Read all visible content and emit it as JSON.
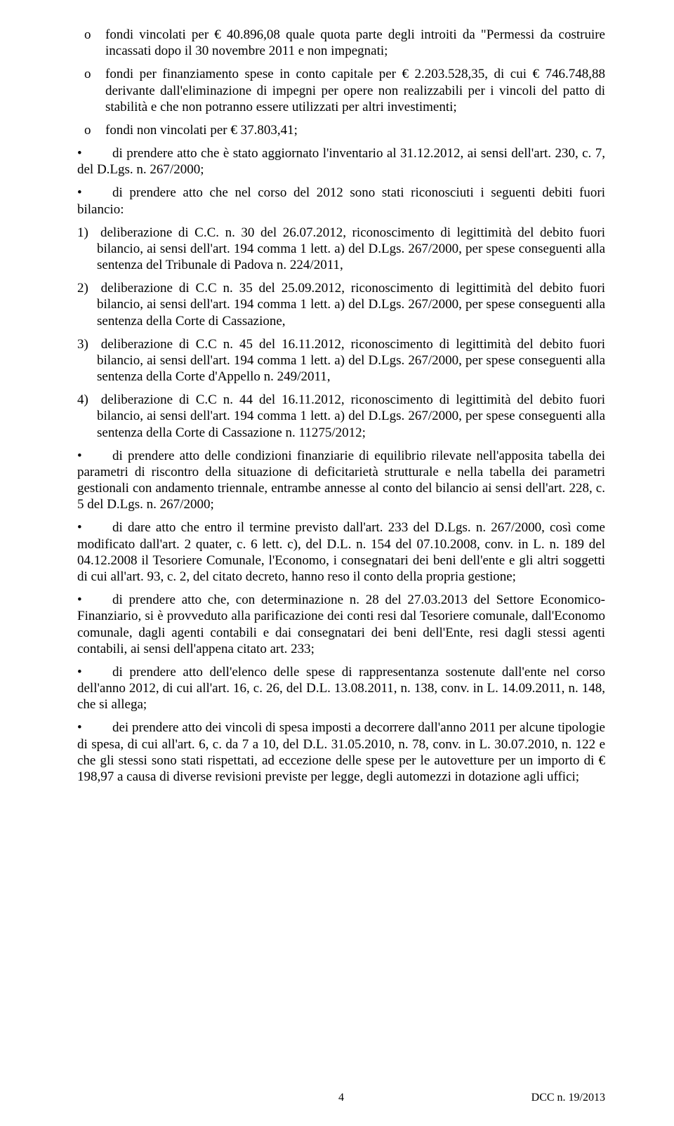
{
  "b1": "fondi vincolati per € 40.896,08 quale quota parte degli introiti da \"Permessi da costruire incassati dopo il 30 novembre 2011 e non impegnati;",
  "b2": "fondi per finanziamento spese in conto capitale per € 2.203.528,35, di cui € 746.748,88 derivante dall'eliminazione di impegni per opere non realizzabili per i vincoli del patto di stabilità e che non potranno essere utilizzati per altri investimenti;",
  "b3": "fondi non vincolati per € 37.803,41;",
  "d1": "di prendere atto che è stato aggiornato l'inventario al 31.12.2012, ai sensi dell'art. 230, c. 7, del D.Lgs. n. 267/2000;",
  "d2": "di prendere atto che nel corso del 2012 sono stati riconosciuti i seguenti debiti fuori bilancio:",
  "n1": "deliberazione di C.C. n. 30 del 26.07.2012, riconoscimento di legittimità del debito fuori bilancio, ai sensi dell'art. 194 comma 1 lett. a) del D.Lgs. 267/2000, per spese conseguenti alla sentenza del Tribunale di Padova n. 224/2011,",
  "n2": "deliberazione di C.C n. 35 del 25.09.2012, riconoscimento di legittimità del debito fuori bilancio, ai sensi dell'art. 194 comma 1 lett. a) del D.Lgs. 267/2000, per spese conseguenti alla sentenza della Corte di Cassazione,",
  "n3": "deliberazione di C.C n. 45 del 16.11.2012, riconoscimento di legittimità del debito fuori bilancio, ai sensi dell'art. 194 comma 1 lett. a) del D.Lgs. 267/2000, per spese conseguenti alla sentenza della Corte d'Appello n. 249/2011,",
  "n4": "deliberazione di C.C n. 44 del 16.11.2012, riconoscimento di legittimità del debito fuori bilancio, ai sensi dell'art. 194 comma 1 lett. a) del D.Lgs. 267/2000, per spese conseguenti alla sentenza della Corte di Cassazione n. 11275/2012;",
  "d3": "di prendere atto delle condizioni finanziarie di equilibrio rilevate nell'apposita tabella dei parametri di riscontro della situazione di deficitarietà strutturale e nella tabella dei parametri gestionali con andamento triennale, entrambe annesse al conto del bilancio ai sensi dell'art. 228, c. 5 del D.Lgs. n. 267/2000;",
  "d4": "di dare atto che entro il termine previsto dall'art. 233 del D.Lgs. n. 267/2000, così come modificato dall'art. 2 quater, c. 6 lett. c), del D.L. n. 154 del 07.10.2008, conv. in L. n. 189 del 04.12.2008 il Tesoriere Comunale, l'Economo, i consegnatari dei beni dell'ente e gli altri soggetti di cui all'art. 93, c. 2, del citato decreto, hanno reso il conto della propria gestione;",
  "d5": "di prendere atto che, con determinazione n. 28 del 27.03.2013 del Settore Economico-Finanziario, si è provveduto alla parificazione dei conti resi dal Tesoriere comunale, dall'Economo comunale, dagli agenti contabili e dai consegnatari dei beni dell'Ente, resi dagli stessi agenti contabili, ai sensi dell'appena citato art. 233;",
  "d6": "di prendere atto dell'elenco delle spese di rappresentanza sostenute dall'ente nel corso dell'anno 2012, di cui all'art. 16, c. 26, del D.L. 13.08.2011, n. 138, conv. in L. 14.09.2011, n. 148, che si allega;",
  "d7": "dei prendere atto dei vincoli di spesa imposti a decorrere dall'anno 2011 per alcune tipologie di spesa, di cui all'art. 6, c. da 7 a 10, del D.L. 31.05.2010, n. 78, conv. in L. 30.07.2010, n. 122 e che gli stessi sono stati rispettati, ad eccezione delle spese per le autovetture per un importo di € 198,97 a causa di diverse revisioni previste per legge, degli automezzi in dotazione agli uffici;",
  "footer_page": "4",
  "footer_ref": "DCC n. 19/2013"
}
